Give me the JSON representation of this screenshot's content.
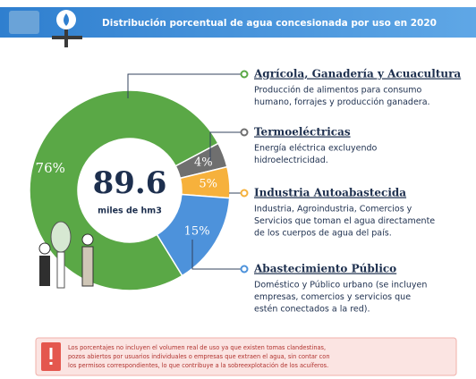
{
  "chart_data": {
    "type": "donut",
    "title": "Distribución porcentual de agua concesionada por uso en 2020",
    "categories": [
      "Agrícola, Ganadería y Acuacultura",
      "Termoeléctricas",
      "Industria Autoabastecida",
      "Abastecimiento Público"
    ],
    "descriptions": [
      [
        "Producción de alimentos para consumo",
        "humano, forrajes y producción ganadera."
      ],
      [
        "Energía eléctrica excluyendo",
        "hidroelectricidad."
      ],
      [
        "Industria, Agroindustria, Comercios y",
        "Servicios que toman el agua directamente",
        "de los cuerpos de agua del país."
      ],
      [
        "Doméstico y Público urbano (se incluyen",
        "empresas, comercios y servicios que",
        "estén conectados a la red)."
      ]
    ],
    "values": [
      76,
      4,
      5,
      15
    ],
    "value_labels": [
      "76%",
      "4%",
      "5%",
      "15%"
    ],
    "colors": [
      "#5aa846",
      "#6f6f6f",
      "#f6b13c",
      "#4d92db"
    ],
    "center_value": 89.6,
    "center_label": "miles de hm3",
    "footnote": [
      "Los porcentajes no incluyen el volumen real de uso ya que existen tomas clandestinas,",
      "pozos abiertos por usuarios individuales o empresas que extraen el agua, sin contar con",
      "los permisos correspondientes, lo que contribuye a la sobreexplotación de los acuíferos."
    ]
  }
}
